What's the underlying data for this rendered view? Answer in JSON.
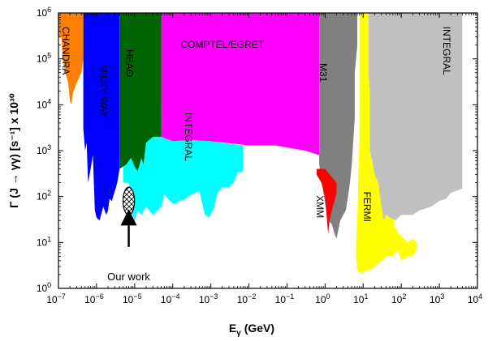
{
  "chart_data": {
    "type": "area",
    "xlabel": "E",
    "xlabel_sub": "γ",
    "xlabel_unit": "(GeV)",
    "ylabel": "Γ (J → γγ) [s⁻¹] x 10³⁰",
    "xscale": "log",
    "yscale": "log",
    "xlim": [
      1e-07,
      10000
    ],
    "ylim": [
      1,
      1000000
    ],
    "grid": false,
    "x_ticks": [
      {
        "value": 1e-07,
        "base": "10",
        "exp": "−7"
      },
      {
        "value": 1e-06,
        "base": "10",
        "exp": "−6"
      },
      {
        "value": 1e-05,
        "base": "10",
        "exp": "−5"
      },
      {
        "value": 0.0001,
        "base": "10",
        "exp": "−4"
      },
      {
        "value": 0.001,
        "base": "10",
        "exp": "−3"
      },
      {
        "value": 0.01,
        "base": "10",
        "exp": "−2"
      },
      {
        "value": 0.1,
        "base": "10",
        "exp": "−1"
      },
      {
        "value": 1,
        "base": "10",
        "exp": "0"
      },
      {
        "value": 10,
        "base": "10",
        "exp": "1"
      },
      {
        "value": 100,
        "base": "10",
        "exp": "2"
      },
      {
        "value": 1000,
        "base": "10",
        "exp": "3"
      },
      {
        "value": 10000,
        "base": "10",
        "exp": "4"
      }
    ],
    "y_ticks": [
      {
        "value": 1,
        "base": "10",
        "exp": "0"
      },
      {
        "value": 10,
        "base": "10",
        "exp": "1"
      },
      {
        "value": 100,
        "base": "10",
        "exp": "2"
      },
      {
        "value": 1000,
        "base": "10",
        "exp": "3"
      },
      {
        "value": 10000,
        "base": "10",
        "exp": "4"
      },
      {
        "value": 100000,
        "base": "10",
        "exp": "5"
      },
      {
        "value": 1000000,
        "base": "10",
        "exp": "6"
      }
    ],
    "regions": [
      {
        "name": "COMPTEL/EGRET",
        "color": "#ff00ff",
        "label_at": [
          0.002,
          200000
        ],
        "rotate": 0,
        "points": [
          [
            5e-05,
            1000000.0
          ],
          [
            0.7,
            1000000.0
          ],
          [
            0.7,
            800
          ],
          [
            0.3,
            1000
          ],
          [
            0.05,
            1300
          ],
          [
            0.01,
            1300
          ],
          [
            0.001,
            1600
          ],
          [
            0.0003,
            1700
          ],
          [
            0.0001,
            1600
          ],
          [
            5e-05,
            2000
          ]
        ]
      },
      {
        "name": "INTEGRAL",
        "color": "#00ffff",
        "label_at": [
          0.00025,
          2000
        ],
        "rotate": 90,
        "points": [
          [
            5e-06,
            10000.0
          ],
          [
            5e-05,
            10000.0
          ],
          [
            5e-05,
            2000
          ],
          [
            0.0001,
            1600
          ],
          [
            0.0003,
            1700
          ],
          [
            0.001,
            1600
          ],
          [
            0.007,
            1300
          ],
          [
            0.007,
            350
          ],
          [
            0.005,
            330
          ],
          [
            0.004,
            200
          ],
          [
            0.003,
            160
          ],
          [
            0.002,
            160
          ],
          [
            0.0015,
            120
          ],
          [
            0.0012,
            55
          ],
          [
            0.0009,
            35
          ],
          [
            0.0007,
            40
          ],
          [
            0.0005,
            130
          ],
          [
            0.0003,
            110
          ],
          [
            0.00025,
            100
          ],
          [
            0.0002,
            85
          ],
          [
            0.00015,
            80
          ],
          [
            0.00012,
            70
          ],
          [
            0.0001,
            70
          ],
          [
            6e-05,
            110
          ],
          [
            5e-05,
            60
          ],
          [
            3e-05,
            40
          ],
          [
            2e-05,
            60
          ],
          [
            1.5e-05,
            40
          ],
          [
            1.2e-05,
            50
          ],
          [
            1e-05,
            30
          ],
          [
            8e-06,
            50
          ],
          [
            7e-06,
            200
          ],
          [
            5e-06,
            200
          ]
        ]
      },
      {
        "name": "HEAO",
        "color": "#006400",
        "label_at": [
          7e-06,
          80000
        ],
        "rotate": 90,
        "points": [
          [
            4e-06,
            1000000.0
          ],
          [
            5e-05,
            1000000.0
          ],
          [
            5e-05,
            2000
          ],
          [
            3e-05,
            2000
          ],
          [
            2e-05,
            1500
          ],
          [
            1.7e-05,
            500
          ],
          [
            1.5e-05,
            700
          ],
          [
            1.2e-05,
            350
          ],
          [
            1e-05,
            450
          ],
          [
            8e-06,
            700
          ],
          [
            6e-06,
            500
          ],
          [
            4e-06,
            400
          ]
        ]
      },
      {
        "name": "MILKY WAY",
        "color": "#0000ff",
        "label_at": [
          1.5e-06,
          20000
        ],
        "rotate": 90,
        "points": [
          [
            5e-07,
            1000000.0
          ],
          [
            4e-06,
            1000000.0
          ],
          [
            4e-06,
            400
          ],
          [
            3.5e-06,
            200
          ],
          [
            3e-06,
            130
          ],
          [
            2.5e-06,
            80
          ],
          [
            2.2e-06,
            90
          ],
          [
            2e-06,
            50
          ],
          [
            1.8e-06,
            40
          ],
          [
            1.5e-06,
            60
          ],
          [
            1.2e-06,
            30
          ],
          [
            1e-06,
            35
          ],
          [
            9e-07,
            50
          ],
          [
            8.5e-07,
            200
          ],
          [
            8e-07,
            800
          ],
          [
            7e-07,
            400
          ],
          [
            6e-07,
            200
          ],
          [
            5.5e-07,
            1500
          ],
          [
            5e-07,
            1000
          ],
          [
            4.5e-07,
            3000
          ],
          [
            4.5e-07,
            1000000.0
          ]
        ]
      },
      {
        "name": "CHANDRA",
        "color": "#ff8000",
        "label_at": [
          1.5e-07,
          150000
        ],
        "rotate": 90,
        "points": [
          [
            1e-07,
            1000000.0
          ],
          [
            4.5e-07,
            1000000.0
          ],
          [
            4.5e-07,
            100000.0
          ],
          [
            4e-07,
            50000.0
          ],
          [
            3e-07,
            30000.0
          ],
          [
            2.5e-07,
            20000.0
          ],
          [
            2.3e-07,
            15000.0
          ],
          [
            2.2e-07,
            10000.0
          ],
          [
            2e-07,
            12000.0
          ],
          [
            1.8e-07,
            30000.0
          ],
          [
            1.5e-07,
            50000.0
          ],
          [
            1.3e-07,
            100000.0
          ],
          [
            1.2e-07,
            300000.0
          ],
          [
            1e-07,
            300000.0
          ]
        ]
      },
      {
        "name": "M31",
        "color": "#808080",
        "label_at": [
          0.85,
          50000
        ],
        "rotate": 90,
        "points": [
          [
            0.7,
            1000000.0
          ],
          [
            7,
            1000000.0
          ],
          [
            7,
            200000.0
          ],
          [
            6,
            50000.0
          ],
          [
            6,
            5000
          ],
          [
            5,
            500
          ],
          [
            4.5,
            200
          ],
          [
            4,
            100
          ],
          [
            3.5,
            50
          ],
          [
            3,
            40
          ],
          [
            2.5,
            30
          ],
          [
            2,
            12
          ],
          [
            1.8,
            15
          ],
          [
            1.5,
            25
          ],
          [
            1.2,
            30
          ],
          [
            1,
            70
          ],
          [
            0.7,
            500
          ]
        ]
      },
      {
        "name": "XMM",
        "color": "#ff0000",
        "label_at": [
          0.7,
          60
        ],
        "rotate": 90,
        "points": [
          [
            0.6,
            400
          ],
          [
            1,
            400
          ],
          [
            2,
            200
          ],
          [
            2,
            120
          ],
          [
            1.6,
            60
          ],
          [
            1.3,
            30
          ],
          [
            1.2,
            15
          ],
          [
            1,
            100
          ],
          [
            0.8,
            200
          ],
          [
            0.6,
            300
          ]
        ]
      },
      {
        "name": "FERMI",
        "color": "#ffff00",
        "label_at": [
          12,
          60
        ],
        "rotate": 90,
        "points": [
          [
            8,
            1000000.0
          ],
          [
            14,
            1000000.0
          ],
          [
            14,
            40000.0
          ],
          [
            15,
            20000.0
          ],
          [
            15,
            1000
          ],
          [
            18,
            500
          ],
          [
            25,
            200
          ],
          [
            40,
            80
          ],
          [
            55,
            50
          ],
          [
            70,
            20
          ],
          [
            90,
            15
          ],
          [
            120,
            12
          ],
          [
            150,
            10
          ],
          [
            200,
            12
          ],
          [
            250,
            10
          ],
          [
            250,
            7
          ],
          [
            200,
            5
          ],
          [
            150,
            5
          ],
          [
            100,
            4
          ],
          [
            80,
            7
          ],
          [
            60,
            5
          ],
          [
            40,
            5
          ],
          [
            30,
            4
          ],
          [
            20,
            3
          ],
          [
            15,
            2.5
          ],
          [
            12,
            2.5
          ],
          [
            10,
            2.2
          ],
          [
            8,
            2.2
          ],
          [
            7,
            2.5
          ],
          [
            6.5,
            5
          ],
          [
            6.5,
            10
          ],
          [
            7,
            30
          ],
          [
            7.5,
            300
          ],
          [
            8,
            2000
          ]
        ]
      },
      {
        "name": "INTEGRAL",
        "color": "#c0c0c0",
        "label_at": [
          1500,
          150000
        ],
        "rotate": 90,
        "points": [
          [
            14,
            1000000.0
          ],
          [
            4000,
            1000000.0
          ],
          [
            4000,
            150
          ],
          [
            2000,
            120
          ],
          [
            1500,
            90
          ],
          [
            1000,
            80
          ],
          [
            600,
            60
          ],
          [
            300,
            50
          ],
          [
            200,
            40
          ],
          [
            100,
            40
          ],
          [
            70,
            30
          ],
          [
            50,
            35
          ],
          [
            40,
            40
          ],
          [
            35,
            30
          ],
          [
            30,
            60
          ],
          [
            25,
            200
          ],
          [
            20,
            300
          ],
          [
            18,
            500
          ],
          [
            15,
            1000
          ],
          [
            15,
            20000.0
          ],
          [
            14,
            40000.0
          ]
        ]
      }
    ],
    "annotations": [
      {
        "text": "Our work",
        "x": 7e-06,
        "y": 1.5,
        "arrow_from": [
          7e-06,
          8
        ],
        "arrow_to": [
          7e-06,
          45
        ]
      }
    ],
    "hatched_marker": {
      "x": 7e-06,
      "y": 80,
      "x_range": [
        5e-06,
        1e-05
      ],
      "y_range": [
        40,
        160
      ]
    }
  }
}
